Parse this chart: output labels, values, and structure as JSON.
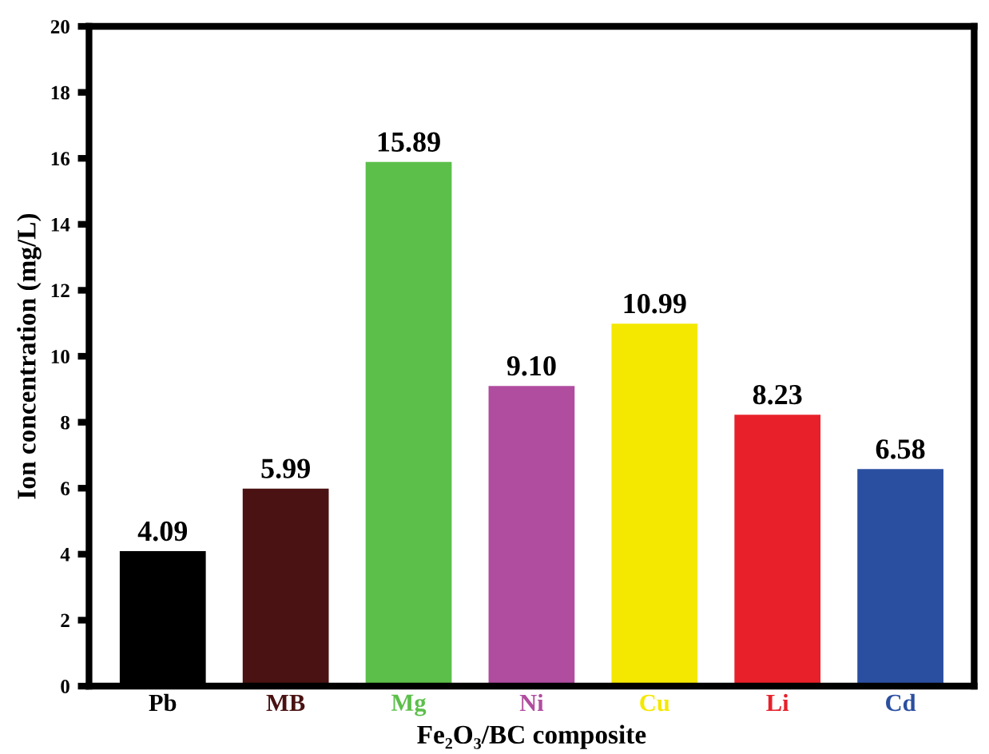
{
  "chart_data": {
    "type": "bar",
    "xlabel": "Fe₂O₃/BC composite",
    "ylabel": "Ion concentration (mg/L)",
    "categories": [
      "Pb",
      "MB",
      "Mg",
      "Ni",
      "Cu",
      "Li",
      "Cd"
    ],
    "values": [
      4.09,
      5.99,
      15.89,
      9.1,
      10.99,
      8.23,
      6.58
    ],
    "value_labels": [
      "4.09",
      "5.99",
      "15.89",
      "9.10",
      "10.99",
      "8.23",
      "6.58"
    ],
    "colors": [
      "#000000",
      "#4a1212",
      "#5cbf4a",
      "#b04d9f",
      "#f4e800",
      "#e8202a",
      "#2b4fa0"
    ],
    "ylim": [
      0,
      20
    ],
    "yticks": [
      0,
      2,
      4,
      6,
      8,
      10,
      12,
      14,
      16,
      18,
      20
    ],
    "grid": false,
    "legend": false
  }
}
